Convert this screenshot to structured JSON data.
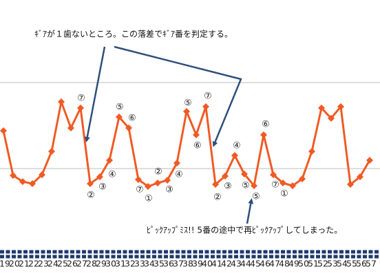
{
  "chart_data": {
    "type": "line",
    "categories": [
      "19",
      "20",
      "21",
      "22",
      "23",
      "24",
      "25",
      "26",
      "27",
      "28",
      "29",
      "30",
      "31",
      "32",
      "33",
      "34",
      "35",
      "36",
      "37",
      "38",
      "39",
      "40",
      "41",
      "42",
      "43",
      "44",
      "45",
      "46",
      "47",
      "48",
      "49",
      "50",
      "51",
      "52",
      "53",
      "54",
      "55",
      "56",
      "57"
    ],
    "series": [
      {
        "name": null,
        "color": "#f05a24",
        "values": [
          72,
          46,
          42.4,
          41.2,
          46.4,
          60,
          88.8,
          73.6,
          85.2,
          41.2,
          45.2,
          54.8,
          80,
          73.6,
          43.6,
          39.6,
          41.6,
          43.2,
          53.2,
          83.2,
          69.6,
          86,
          40.8,
          45.6,
          57.6,
          46.8,
          40,
          69.6,
          46.4,
          41.6,
          40,
          44,
          60,
          85.2,
          79.2,
          86,
          40.8,
          45.2,
          54.8
        ]
      }
    ],
    "ylim": [
      0,
      148
    ],
    "yticks": [
      50,
      100
    ],
    "grid": true,
    "point_labels": [
      "⑦",
      "⑤",
      "⑥",
      "②",
      "③",
      "④",
      "⑦",
      "①",
      "②",
      "③",
      "④",
      "⑤",
      "⑥",
      "⑦",
      "②",
      "③",
      "④",
      "⑤",
      "⑤",
      "⑥",
      "⑦",
      "①"
    ],
    "annotations": [
      "ｷﾞｱが１歯ないところ。この落差でｷﾞｱ番を判定する。",
      "ﾋﾟｯｸｱｯﾌﾟﾐｽ!!  5番の途中で再ﾋﾟｯｸｱｯﾌﾟしてしまった。"
    ]
  }
}
